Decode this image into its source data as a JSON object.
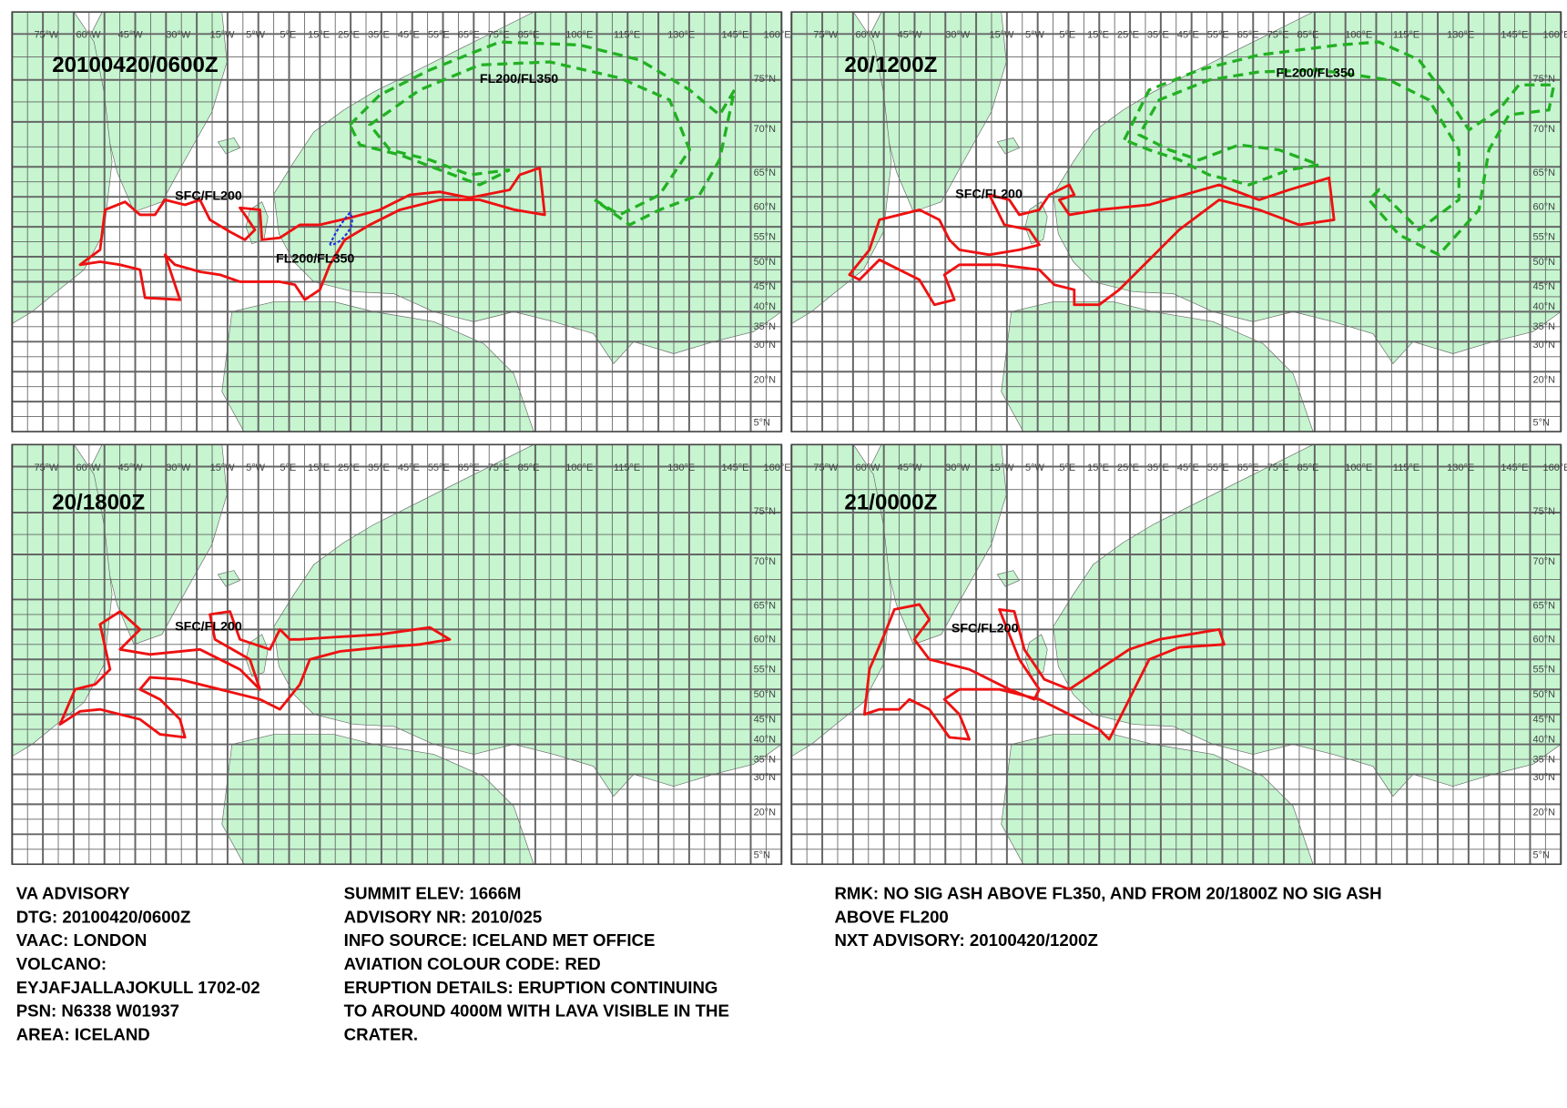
{
  "panels": [
    {
      "time": "20100420/0600Z",
      "labels": [
        "SFC/FL200",
        "FL200/FL350",
        "FL200/FL350"
      ]
    },
    {
      "time": "20/1200Z",
      "labels": [
        "FL200/FL350",
        "SFC/FL200"
      ]
    },
    {
      "time": "20/1800Z",
      "labels": [
        "SFC/FL200"
      ]
    },
    {
      "time": "21/0000Z",
      "labels": [
        "SFC/FL200"
      ]
    }
  ],
  "map": {
    "longitudes": [
      "75°W",
      "60°W",
      "45°W",
      "30°W",
      "15°W",
      "5°W",
      "5°E",
      "15°E",
      "25°E",
      "35°E",
      "45°E",
      "55°E",
      "65°E",
      "75°E",
      "85°E",
      "100°E",
      "115°E",
      "130°E",
      "145°E",
      "160°E"
    ],
    "latitudes": [
      "75°N",
      "70°N",
      "65°N",
      "60°N",
      "55°N",
      "50°N",
      "45°N",
      "40°N",
      "35°N",
      "30°N",
      "20°N",
      "5°N"
    ]
  },
  "advisory": {
    "column1": [
      "VA ADVISORY",
      "DTG:  20100420/0600Z",
      "VAAC:  LONDON",
      "VOLCANO:",
      "EYJAFJALLAJOKULL 1702-02",
      "PSN:  N6338 W01937",
      "AREA:  ICELAND"
    ],
    "column2": [
      "SUMMIT ELEV:  1666M",
      "ADVISORY NR:  2010/025",
      "INFO SOURCE:  ICELAND MET OFFICE",
      "AVIATION COLOUR CODE:  RED",
      "ERUPTION DETAILS:  ERUPTION CONTINUING",
      "TO AROUND 4000M WITH LAVA VISIBLE IN THE",
      "CRATER."
    ],
    "column3": [
      "RMK:  NO SIG ASH ABOVE FL350, AND FROM 20/1800Z NO SIG ASH",
      "ABOVE FL200",
      "NXT ADVISORY:  20100420/1200Z"
    ]
  }
}
